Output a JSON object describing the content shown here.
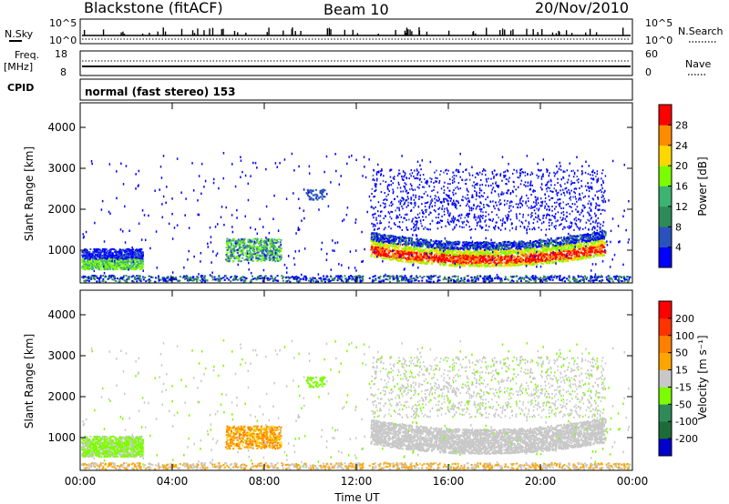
{
  "header": {
    "station": "Blackstone (fitACF)",
    "beam": "Beam 10",
    "date": "20/Nov/2010"
  },
  "strip_labels": {
    "nsky": "N.Sky",
    "nsky_top": "10^5",
    "nsky_bottom": "10^0",
    "nsearch": "N.Search",
    "nsearch_top": "10^5",
    "nsearch_bottom": "10^0",
    "freq": "Freq.",
    "freq_unit": "[MHz]",
    "freq_top": "18",
    "freq_bottom": "8",
    "nave": "Nave",
    "nave_top": "60",
    "nave_bottom": "0",
    "cpid": "CPID",
    "mode": "normal (fast stereo) 153"
  },
  "chart_data": [
    {
      "type": "heatmap",
      "panel": "power",
      "ylabel": "Slant Range [km]",
      "y_ticks": [
        "4000",
        "3000",
        "2000",
        "1000"
      ],
      "y_tick_values": [
        4000,
        3000,
        2000,
        1000
      ],
      "ylim": [
        200,
        4600
      ],
      "x_ticks": [
        "00:00",
        "04:00",
        "08:00",
        "12:00",
        "16:00",
        "20:00",
        "00:00"
      ],
      "x_tick_values": [
        0,
        4,
        8,
        12,
        16,
        20,
        24
      ],
      "xlim": [
        0,
        24
      ],
      "colorbar_label": "Power [dB]",
      "colorbar_ticks": [
        "28",
        "24",
        "20",
        "16",
        "12",
        "8",
        "4"
      ],
      "colorbar_tick_values": [
        28,
        24,
        20,
        16,
        12,
        8,
        4
      ],
      "colorbar_range": [
        0,
        32
      ],
      "colorbar_colors": [
        "#0000ff",
        "#2a52be",
        "#2e8b57",
        "#3cb371",
        "#7cfc00",
        "#ffd700",
        "#ff8c00",
        "#ff0000"
      ]
    },
    {
      "type": "heatmap",
      "panel": "velocity",
      "ylabel": "Slant Range [km]",
      "y_ticks": [
        "4000",
        "3000",
        "2000",
        "1000"
      ],
      "y_tick_values": [
        4000,
        3000,
        2000,
        1000
      ],
      "ylim": [
        200,
        4600
      ],
      "x_ticks": [
        "00:00",
        "04:00",
        "08:00",
        "12:00",
        "16:00",
        "20:00",
        "00:00"
      ],
      "x_tick_values": [
        0,
        4,
        8,
        12,
        16,
        20,
        24
      ],
      "xlim": [
        0,
        24
      ],
      "xlabel": "Time UT",
      "colorbar_label": "Velocity [m s⁻¹]",
      "colorbar_ticks": [
        "200",
        "100",
        "50",
        "15",
        "-15",
        "-50",
        "-100",
        "-200"
      ],
      "colorbar_colors": [
        "#0000cd",
        "#1e6b3a",
        "#2e8b57",
        "#7cfc00",
        "#c8c8c8",
        "#ffa500",
        "#ff7f00",
        "#ff3300",
        "#ff0000"
      ]
    }
  ]
}
